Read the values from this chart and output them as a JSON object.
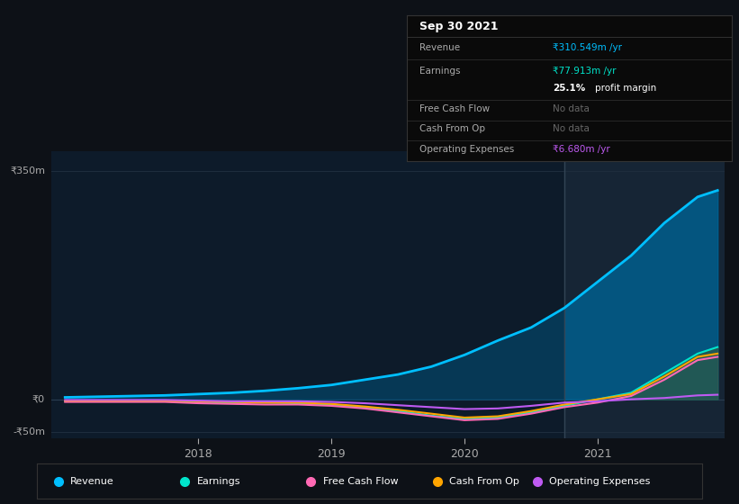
{
  "bg_color": "#0d1117",
  "chart_bg": "#0d1b2a",
  "grid_color": "#1e2d3d",
  "highlight_bg": "#0a1628",
  "tooltip_bg": "#0a0a0a",
  "ylim": [
    -60,
    380
  ],
  "yticks": [
    -50,
    0,
    350
  ],
  "ytick_labels": [
    "-₹50m",
    "₹0",
    "₹350m"
  ],
  "xtick_labels": [
    "2018",
    "2019",
    "2020",
    "2021"
  ],
  "x_years": [
    2017.0,
    2017.25,
    2017.5,
    2017.75,
    2018.0,
    2018.25,
    2018.5,
    2018.75,
    2019.0,
    2019.25,
    2019.5,
    2019.75,
    2020.0,
    2020.25,
    2020.5,
    2020.75,
    2021.0,
    2021.25,
    2021.5,
    2021.75,
    2021.9
  ],
  "revenue": [
    3,
    4,
    5,
    6,
    8,
    10,
    13,
    17,
    22,
    30,
    38,
    50,
    68,
    90,
    110,
    140,
    180,
    220,
    270,
    310,
    320
  ],
  "earnings": [
    -3,
    -3,
    -3,
    -2,
    -4,
    -5,
    -5,
    -6,
    -8,
    -12,
    -18,
    -25,
    -30,
    -28,
    -20,
    -10,
    0,
    10,
    40,
    70,
    80
  ],
  "free_cash": [
    -4,
    -4,
    -4,
    -4,
    -6,
    -7,
    -8,
    -8,
    -10,
    -14,
    -20,
    -26,
    -32,
    -30,
    -22,
    -12,
    -5,
    5,
    30,
    60,
    65
  ],
  "cash_from_op": [
    -2,
    -2,
    -2,
    -2,
    -3,
    -4,
    -5,
    -5,
    -7,
    -11,
    -16,
    -22,
    -28,
    -26,
    -18,
    -8,
    0,
    8,
    35,
    65,
    70
  ],
  "op_expenses": [
    -1,
    -1,
    -1,
    -1,
    -2,
    -3,
    -3,
    -3,
    -4,
    -6,
    -9,
    -12,
    -15,
    -14,
    -10,
    -5,
    -3,
    0,
    2,
    6,
    7
  ],
  "revenue_color": "#00bfff",
  "earnings_color": "#00e5cc",
  "free_cash_color": "#ff69b4",
  "cash_from_op_color": "#ffa500",
  "op_expenses_color": "#bf5af2",
  "tooltip": {
    "date": "Sep 30 2021",
    "revenue_val": "₹310.549m /yr",
    "revenue_color": "#00bfff",
    "earnings_val": "₹77.913m /yr",
    "earnings_color": "#00e5cc",
    "margin_text": "25.1% profit margin",
    "free_cash_val": "No data",
    "cash_from_op_val": "No data",
    "op_expenses_val": "₹6.680m /yr",
    "op_expenses_color": "#bf5af2"
  },
  "legend_items": [
    {
      "label": "Revenue",
      "color": "#00bfff"
    },
    {
      "label": "Earnings",
      "color": "#00e5cc"
    },
    {
      "label": "Free Cash Flow",
      "color": "#ff69b4"
    },
    {
      "label": "Cash From Op",
      "color": "#ffa500"
    },
    {
      "label": "Operating Expenses",
      "color": "#bf5af2"
    }
  ]
}
